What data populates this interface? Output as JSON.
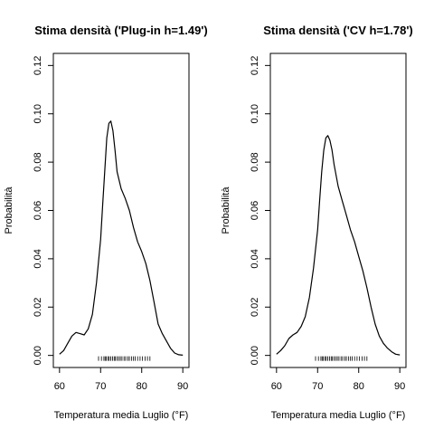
{
  "chart_data": [
    {
      "type": "line",
      "title": "Stima densità ('Plug-in h=1.49')",
      "xlabel": "Temperatura media Luglio (°F)",
      "ylabel": "Probabilità",
      "xlim": [
        58.5,
        91.5
      ],
      "ylim": [
        -0.005,
        0.125
      ],
      "x_ticks": [
        "60",
        "70",
        "80",
        "90"
      ],
      "y_ticks": [
        "0.00",
        "0.02",
        "0.04",
        "0.06",
        "0.08",
        "0.10",
        "0.12"
      ],
      "grid": false,
      "legend": "none",
      "series": [
        {
          "x": [
            60.0,
            61.0,
            62.0,
            63.0,
            64.0,
            65.0,
            66.0,
            67.0,
            68.0,
            69.0,
            70.0,
            70.5,
            71.0,
            71.5,
            72.0,
            72.5,
            73.0,
            73.5,
            74.0,
            75.0,
            76.0,
            77.0,
            78.0,
            79.0,
            80.0,
            81.0,
            82.0,
            83.0,
            84.0,
            85.0,
            86.0,
            87.0,
            88.0,
            89.0,
            90.0
          ],
          "y": [
            0.0005,
            0.002,
            0.005,
            0.008,
            0.0095,
            0.009,
            0.0085,
            0.011,
            0.017,
            0.03,
            0.048,
            0.062,
            0.076,
            0.09,
            0.096,
            0.097,
            0.093,
            0.085,
            0.076,
            0.069,
            0.065,
            0.06,
            0.053,
            0.047,
            0.043,
            0.038,
            0.031,
            0.022,
            0.013,
            0.009,
            0.006,
            0.003,
            0.001,
            0.0003,
            0.0001
          ]
        }
      ],
      "rug": [
        69.5,
        70.2,
        70.8,
        71.1,
        71.4,
        71.8,
        72.1,
        72.5,
        72.9,
        73.3,
        73.6,
        74.0,
        74.4,
        74.8,
        75.2,
        75.7,
        76.1,
        76.6,
        77.0,
        77.5,
        78.0,
        78.4,
        79.0,
        79.6,
        80.2,
        80.8,
        81.4,
        82.0
      ]
    },
    {
      "type": "line",
      "title": "Stima densità ('CV h=1.78')",
      "xlabel": "Temperatura media Luglio (°F)",
      "ylabel": "Probabilità",
      "xlim": [
        58.5,
        91.5
      ],
      "ylim": [
        -0.005,
        0.125
      ],
      "x_ticks": [
        "60",
        "70",
        "80",
        "90"
      ],
      "y_ticks": [
        "0.00",
        "0.02",
        "0.04",
        "0.06",
        "0.08",
        "0.10",
        "0.12"
      ],
      "grid": false,
      "legend": "none",
      "series": [
        {
          "x": [
            60.0,
            61.0,
            62.0,
            63.0,
            64.0,
            65.0,
            66.0,
            67.0,
            68.0,
            69.0,
            70.0,
            70.5,
            71.0,
            71.5,
            72.0,
            72.5,
            73.0,
            73.5,
            74.0,
            75.0,
            76.0,
            77.0,
            78.0,
            79.0,
            80.0,
            81.0,
            82.0,
            83.0,
            84.0,
            85.0,
            86.0,
            87.0,
            88.0,
            89.0,
            90.0
          ],
          "y": [
            0.0005,
            0.002,
            0.004,
            0.007,
            0.0085,
            0.0095,
            0.012,
            0.016,
            0.024,
            0.036,
            0.052,
            0.064,
            0.076,
            0.085,
            0.09,
            0.091,
            0.089,
            0.085,
            0.079,
            0.07,
            0.064,
            0.058,
            0.052,
            0.047,
            0.041,
            0.035,
            0.028,
            0.02,
            0.013,
            0.008,
            0.005,
            0.003,
            0.0015,
            0.0005,
            0.0002
          ]
        }
      ],
      "rug": [
        69.5,
        70.2,
        70.8,
        71.1,
        71.4,
        71.8,
        72.1,
        72.5,
        72.9,
        73.3,
        73.6,
        74.0,
        74.4,
        74.8,
        75.2,
        75.7,
        76.1,
        76.6,
        77.0,
        77.5,
        78.0,
        78.4,
        79.0,
        79.6,
        80.2,
        80.8,
        81.4,
        82.0
      ]
    }
  ]
}
